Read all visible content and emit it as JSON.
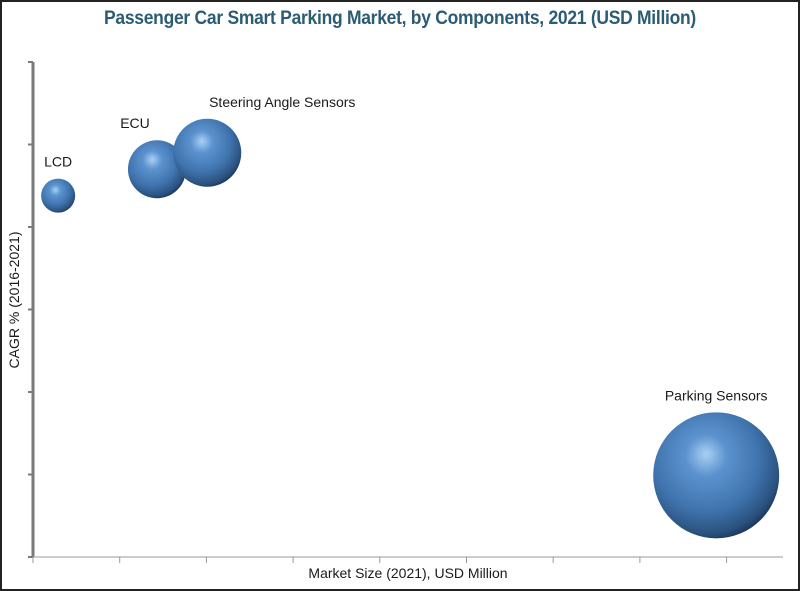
{
  "chart_data": {
    "type": "scatter",
    "subtype": "bubble",
    "title": "Passenger Car Smart Parking Market, by Components, 2021 (USD Million)",
    "xlabel": "Market Size (2021), USD Million",
    "ylabel": "CAGR % (2016-2021)",
    "xlim": [
      0,
      8.6
    ],
    "ylim": [
      0,
      6
    ],
    "x_ticks_count": 9,
    "y_ticks_count": 6,
    "tick_labels_shown": false,
    "grid": false,
    "legend": "none",
    "bubble_color": "#3f73ad",
    "points": [
      {
        "label": "LCD",
        "x": 0.29,
        "y": 4.38,
        "size": 7.3
      },
      {
        "label": "ECU",
        "x": 1.43,
        "y": 4.7,
        "size": 21.2
      },
      {
        "label": "Steering Angle Sensors",
        "x": 2.01,
        "y": 4.9,
        "size": 29.1
      },
      {
        "label": "Parking Sensors",
        "x": 7.88,
        "y": 0.99,
        "size": 100
      }
    ]
  }
}
